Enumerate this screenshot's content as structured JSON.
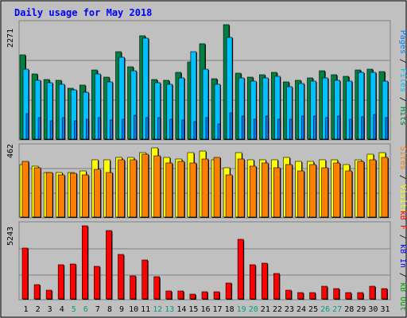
{
  "title": "Daily usage for May 2018",
  "colors": {
    "background": "#c0c0c0",
    "title": "#0000ff",
    "hits": "#008040",
    "files": "#00c0ff",
    "pages": "#0080ff",
    "visits": "#ffff00",
    "sites": "#ff8000",
    "kb_in": "#0000ff",
    "kb_out": "#00a000",
    "kb_f": "#ff0000",
    "weekend_day": "#00a080",
    "weekday_day": "#000000"
  },
  "chart_data": {
    "type": "bar",
    "title": "Daily usage for May 2018",
    "x": {
      "days": [
        "1",
        "2",
        "3",
        "4",
        "5",
        "6",
        "7",
        "8",
        "9",
        "10",
        "11",
        "12",
        "13",
        "14",
        "15",
        "16",
        "17",
        "18",
        "19",
        "20",
        "21",
        "22",
        "23",
        "24",
        "25",
        "26",
        "27",
        "28",
        "29",
        "30",
        "31"
      ],
      "weekend_days": [
        "5",
        "6",
        "12",
        "13",
        "19",
        "20",
        "26",
        "27"
      ]
    },
    "panels": [
      {
        "id": "top",
        "tick_label": "2271",
        "ylim": [
          0,
          2271
        ],
        "series": [
          {
            "name": "Hits",
            "values": [
              1665,
              1291,
              1186,
              1163,
              1011,
              1075,
              1369,
              1225,
              1734,
              1431,
              2048,
              1179,
              1167,
              1320,
              1531,
              1886,
              1200,
              2271,
              1309,
              1234,
              1279,
              1320,
              1128,
              1163,
              1211,
              1349,
              1274,
              1240,
              1374,
              1385,
              1341
            ],
            "color": "#008040"
          },
          {
            "name": "Files",
            "values": [
              1386,
              1163,
              1117,
              1089,
              973,
              936,
              1300,
              1132,
              1624,
              1360,
              1997,
              1117,
              1089,
              1212,
              1730,
              1384,
              1089,
              2024,
              1216,
              1149,
              1207,
              1248,
              1046,
              1107,
              1149,
              1221,
              1161,
              1154,
              1330,
              1327,
              1154
            ],
            "color": "#00c0ff"
          },
          {
            "name": "Pages",
            "values": [
              500,
              430,
              370,
              420,
              360,
              400,
              430,
              380,
              400,
              480,
              430,
              420,
              390,
              380,
              350,
              420,
              300,
              520,
              460,
              400,
              460,
              390,
              400,
              450,
              460,
              430,
              450,
              400,
              440,
              490,
              420
            ],
            "color": "#0080ff"
          }
        ]
      },
      {
        "id": "mid",
        "tick_label": "462",
        "ylim": [
          0,
          462
        ],
        "series": [
          {
            "name": "Visits",
            "values": [
              350,
              340,
              300,
              300,
              300,
              310,
              380,
              380,
              400,
              400,
              430,
              462,
              400,
              390,
              430,
              440,
              380,
              330,
              430,
              380,
              380,
              380,
              400,
              370,
              370,
              380,
              380,
              350,
              380,
              420,
              430
            ],
            "color": "#ffff00"
          },
          {
            "name": "Sites",
            "values": [
              370,
              330,
              300,
              280,
              290,
              280,
              320,
              300,
              380,
              380,
              420,
              410,
              360,
              370,
              360,
              390,
              400,
              280,
              390,
              340,
              360,
              330,
              350,
              310,
              350,
              330,
              360,
              310,
              370,
              380,
              400
            ],
            "color": "#ff8000"
          }
        ]
      },
      {
        "id": "bot",
        "tick_label": "5243",
        "ylim": [
          0,
          5243
        ],
        "series": [
          {
            "name": "KB F",
            "values": [
              3640,
              1020,
              650,
              2440,
              2520,
              5243,
              2310,
              4910,
              3210,
              1630,
              2790,
              1590,
              570,
              570,
              360,
              540,
              540,
              1130,
              4280,
              2460,
              2540,
              1810,
              600,
              450,
              440,
              930,
              720,
              450,
              450,
              910,
              740
            ],
            "color": "#ff0000"
          }
        ]
      }
    ],
    "legend": {
      "top_labels": [
        "Pages",
        "Files",
        "Hits"
      ],
      "mid_labels": [
        "Sites",
        "Visits"
      ],
      "bot_labels": [
        "kB F",
        "kB In",
        "kB Out"
      ]
    }
  }
}
